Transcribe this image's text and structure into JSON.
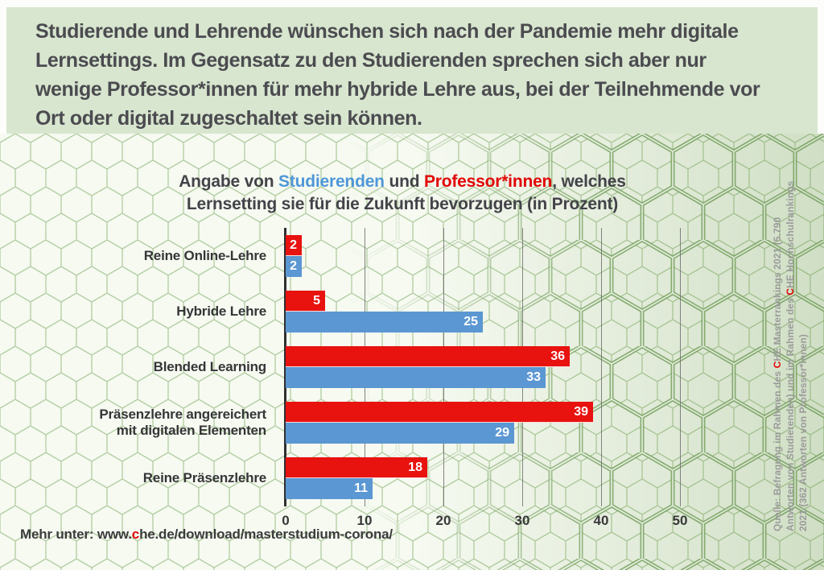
{
  "header": {
    "lines": [
      "Studierende und Lehrende wünschen sich nach der Pandemie mehr digitale",
      "Lernsettings. Im Gegensatz zu den Studierenden sprechen sich aber nur",
      "wenige Professor*innen für mehr hybride Lehre aus, bei der Teilnehmende vor",
      "Ort oder digital zugeschaltet sein können."
    ]
  },
  "chart_title": {
    "line1": {
      "part1": "Angabe von ",
      "students": "Studierenden",
      "part2": " und ",
      "professors": "Professor*innen",
      "part3": ", welches"
    },
    "line2": "Lernsetting sie für die Zukunft bevorzugen (in Prozent)"
  },
  "chart_data": {
    "type": "bar",
    "orientation": "horizontal",
    "title": "Angabe von Studierenden und Professor*innen, welches Lernsetting sie für die Zukunft bevorzugen (in Prozent)",
    "unit": "Prozent",
    "categories": [
      "Reine Online-Lehre",
      "Hybride Lehre",
      "Blended Learning",
      "Präsenzlehre angereichert\nmit digitalen Elementen",
      "Reine Präsenzlehre"
    ],
    "series": [
      {
        "name": "Professor*innen",
        "color": "#e8120f",
        "values": [
          2,
          5,
          36,
          39,
          18
        ]
      },
      {
        "name": "Studierenden",
        "color": "#5b97d2",
        "values": [
          2,
          25,
          33,
          29,
          11
        ]
      }
    ],
    "x_ticks": [
      0,
      10,
      20,
      30,
      40,
      50
    ],
    "xlim": [
      0,
      53
    ],
    "grid": "vertical",
    "value_labels": true,
    "legend_position": "in-title"
  },
  "footer": {
    "pre": "Mehr unter: www.",
    "highlight": "c",
    "post": "he.de/download/masterstudium-corona/"
  },
  "source": {
    "line1": {
      "pre": "Quelle: Befragung im Rahmen des ",
      "c": "C",
      "post": "HE Masterrankings 2021 (5.790"
    },
    "line2": {
      "pre": "Antworten von Studierenden) und im Rahmen des ",
      "c": "C",
      "post": "HE Hochschulrankings"
    },
    "line3": "2021 (362 Antworten von Professor*innen)"
  },
  "colors": {
    "professor_red": "#e8120f",
    "student_blue": "#5b97d2",
    "header_bg": "#d8e6cf",
    "text_dark": "#4b4b50",
    "source_gray": "#9b9b9b"
  }
}
